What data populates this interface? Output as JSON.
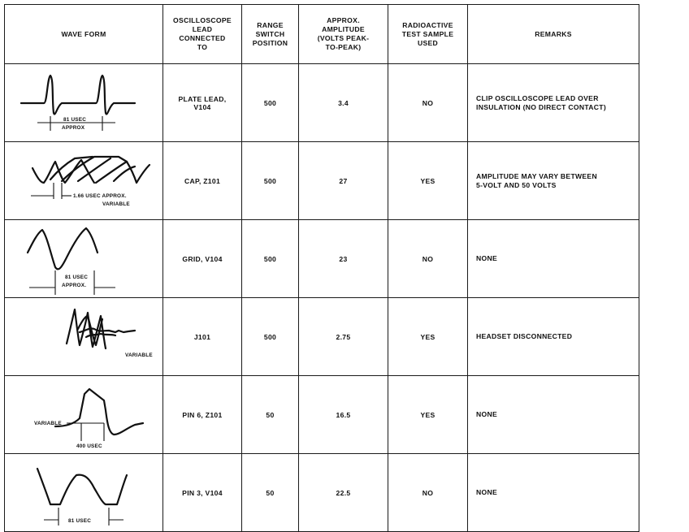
{
  "headers": {
    "wave_form": "WAVE FORM",
    "lead": "OSCILLOSCOPE\nLEAD\nCONNECTED\nTO",
    "range": "RANGE\nSWITCH\nPOSITION",
    "amplitude": "APPROX.\nAMPLITUDE\n(VOLTS PEAK-\nTO-PEAK)",
    "radioactive": "RADIOACTIVE\nTEST SAMPLE\nUSED",
    "remarks": "REMARKS"
  },
  "rows": [
    {
      "wave_labels": [
        "81 USEC",
        "APPROX"
      ],
      "lead": "PLATE LEAD,\nV104",
      "range": "500",
      "amplitude": "3.4",
      "radioactive": "NO",
      "remarks": "CLIP OSCILLOSCOPE LEAD OVER\nINSULATION (NO DIRECT CONTACT)"
    },
    {
      "wave_labels": [
        "1.66 USEC APPROX.",
        "VARIABLE"
      ],
      "lead": "CAP, Z101",
      "range": "500",
      "amplitude": "27",
      "radioactive": "YES",
      "remarks": "AMPLITUDE MAY VARY BETWEEN\n5-VOLT AND 50 VOLTS"
    },
    {
      "wave_labels": [
        "81 USEC",
        "APPROX."
      ],
      "lead": "GRID, V104",
      "range": "500",
      "amplitude": "23",
      "radioactive": "NO",
      "remarks": "NONE"
    },
    {
      "wave_labels": [
        "VARIABLE"
      ],
      "lead": "J101",
      "range": "500",
      "amplitude": "2.75",
      "radioactive": "YES",
      "remarks": "HEADSET DISCONNECTED"
    },
    {
      "wave_labels": [
        "VARIABLE",
        "400 USEC"
      ],
      "lead": "PIN 6, Z101",
      "range": "50",
      "amplitude": "16.5",
      "radioactive": "YES",
      "remarks": "NONE"
    },
    {
      "wave_labels": [
        "81 USEC"
      ],
      "lead": "PIN 3, V104",
      "range": "50",
      "amplitude": "22.5",
      "radioactive": "NO",
      "remarks": "NONE"
    }
  ]
}
